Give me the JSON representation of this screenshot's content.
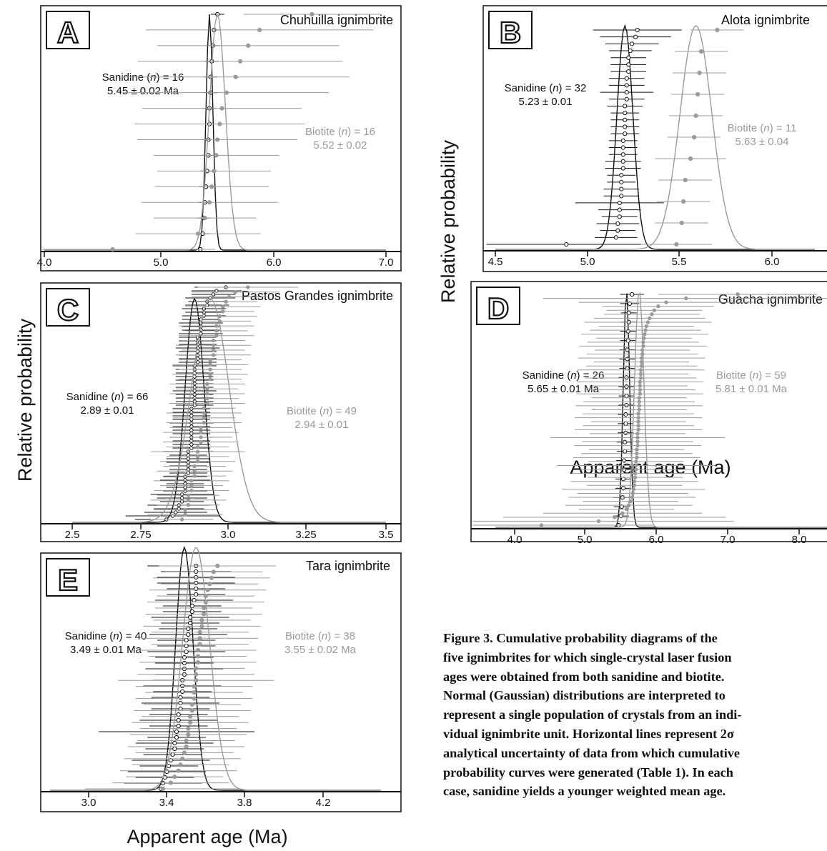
{
  "figure": {
    "ylabel": "Relative probability",
    "xlabel": "Apparent age (Ma)",
    "caption_lines": [
      "Figure 3. Cumulative probability diagrams of the",
      "five ignimbrites for which single-crystal laser fusion",
      "ages were obtained from both sanidine and biotite.",
      "Normal (Gaussian) distributions are interpreted to",
      "represent a single population of crystals from an indi-",
      "vidual ignimbrite unit. Horizontal lines represent 2σ",
      "analytical uncertainty of data from which cumulative",
      "probability curves were generated (Table 1). In each",
      "case, sanidine yields a younger weighted mean age."
    ]
  },
  "colors": {
    "sanidine": "#111111",
    "biotite": "#9a9a9a"
  },
  "chart_data": [
    {
      "type": "scatter",
      "panel": "A",
      "title": "Chuhuilla ignimbrite",
      "xlim": [
        4.0,
        7.0
      ],
      "xticks": [
        "4.0",
        "5.0",
        "6.0",
        "7.0"
      ],
      "series": [
        {
          "name": "Sanidine",
          "n": 16,
          "mean": 5.45,
          "sd": 0.03,
          "label": [
            "Sanidine (",
            "n",
            ") = 16"
          ],
          "age": "5.45 ± 0.02 Ma",
          "ages": [
            5.37,
            5.39,
            5.4,
            5.41,
            5.42,
            5.43,
            5.44,
            5.44,
            5.45,
            5.45,
            5.46,
            5.46,
            5.47,
            5.48,
            5.49,
            5.52
          ],
          "errs": [
            0.07,
            0.06,
            0.06,
            0.06,
            0.06,
            0.06,
            0.06,
            0.06,
            0.06,
            0.06,
            0.06,
            0.06,
            0.06,
            0.06,
            0.06,
            0.06
          ]
        },
        {
          "name": "Biotite",
          "n": 16,
          "mean": 5.52,
          "sd": 0.07,
          "label": [
            "Biotite (",
            "n",
            ") = 16"
          ],
          "age": "5.52 ± 0.02",
          "ages": [
            4.6,
            5.35,
            5.41,
            5.45,
            5.47,
            5.49,
            5.51,
            5.52,
            5.54,
            5.56,
            5.6,
            5.68,
            5.72,
            5.79,
            5.89,
            6.35
          ],
          "errs": [
            0.9,
            0.55,
            0.45,
            0.6,
            0.5,
            0.5,
            0.55,
            0.7,
            0.75,
            0.7,
            0.9,
            1.0,
            0.9,
            0.8,
            1.0,
            0.6
          ]
        }
      ]
    },
    {
      "type": "scatter",
      "panel": "B",
      "title": "Alota ignimbrite",
      "xlim": [
        4.5,
        6.3
      ],
      "xticks": [
        "4.5",
        "5.0",
        "5.5",
        "6.0"
      ],
      "series": [
        {
          "name": "Sanidine",
          "n": 32,
          "mean": 5.23,
          "sd": 0.045,
          "label": [
            "Sanidine (",
            "n",
            ") = 32"
          ],
          "age": "5.23 ± 0.01",
          "ages": [
            4.9,
            5.18,
            5.19,
            5.19,
            5.2,
            5.2,
            5.2,
            5.21,
            5.21,
            5.21,
            5.21,
            5.22,
            5.22,
            5.22,
            5.22,
            5.22,
            5.23,
            5.23,
            5.23,
            5.23,
            5.23,
            5.24,
            5.24,
            5.24,
            5.24,
            5.25,
            5.25,
            5.25,
            5.26,
            5.27,
            5.29,
            5.3
          ],
          "errs": [
            0.45,
            0.12,
            0.1,
            0.12,
            0.1,
            0.12,
            0.25,
            0.1,
            0.1,
            0.08,
            0.08,
            0.1,
            0.1,
            0.08,
            0.08,
            0.08,
            0.08,
            0.08,
            0.08,
            0.08,
            0.1,
            0.1,
            0.15,
            0.1,
            0.1,
            0.1,
            0.1,
            0.1,
            0.12,
            0.15,
            0.2,
            0.25
          ]
        },
        {
          "name": "Biotite",
          "n": 11,
          "mean": 5.63,
          "sd": 0.09,
          "label": [
            "Biotite (",
            "n",
            ") = 11"
          ],
          "age": "5.63 ± 0.04",
          "ages": [
            5.52,
            5.55,
            5.56,
            5.57,
            5.6,
            5.62,
            5.63,
            5.64,
            5.65,
            5.66,
            5.75
          ],
          "errs": [
            0.2,
            0.15,
            0.15,
            0.15,
            0.2,
            0.15,
            0.15,
            0.15,
            0.15,
            0.15,
            0.15
          ]
        }
      ]
    },
    {
      "type": "scatter",
      "panel": "C",
      "title": "Pastos Grandes ignimbrite",
      "xlim": [
        2.5,
        3.5
      ],
      "xticks": [
        "2.5",
        "2.75",
        "3.0",
        "3.25",
        "3.5"
      ],
      "series": [
        {
          "name": "Sanidine",
          "n": 66,
          "mean": 2.89,
          "sd": 0.03,
          "label": [
            "Sanidine (",
            "n",
            ") = 66"
          ],
          "age": "2.89 ± 0.01",
          "ages": [
            2.8,
            2.82,
            2.83,
            2.84,
            2.84,
            2.85,
            2.85,
            2.85,
            2.86,
            2.86,
            2.86,
            2.86,
            2.86,
            2.87,
            2.87,
            2.87,
            2.87,
            2.87,
            2.87,
            2.87,
            2.88,
            2.88,
            2.88,
            2.88,
            2.88,
            2.88,
            2.88,
            2.88,
            2.88,
            2.88,
            2.88,
            2.88,
            2.89,
            2.89,
            2.89,
            2.89,
            2.89,
            2.89,
            2.89,
            2.89,
            2.89,
            2.89,
            2.89,
            2.89,
            2.9,
            2.9,
            2.9,
            2.9,
            2.9,
            2.9,
            2.9,
            2.9,
            2.91,
            2.91,
            2.91,
            2.91,
            2.91,
            2.92,
            2.92,
            2.92,
            2.93,
            2.93,
            2.94,
            2.95,
            2.96,
            2.99
          ],
          "errs": [
            0.1,
            0.15,
            0.1,
            0.08,
            0.1,
            0.07,
            0.08,
            0.1,
            0.07,
            0.06,
            0.06,
            0.08,
            0.07,
            0.06,
            0.06,
            0.06,
            0.07,
            0.07,
            0.06,
            0.08,
            0.06,
            0.06,
            0.06,
            0.07,
            0.06,
            0.06,
            0.06,
            0.07,
            0.06,
            0.06,
            0.06,
            0.06,
            0.06,
            0.06,
            0.06,
            0.06,
            0.07,
            0.06,
            0.06,
            0.06,
            0.06,
            0.06,
            0.06,
            0.07,
            0.06,
            0.06,
            0.06,
            0.06,
            0.07,
            0.06,
            0.06,
            0.06,
            0.07,
            0.06,
            0.06,
            0.07,
            0.06,
            0.07,
            0.06,
            0.07,
            0.07,
            0.06,
            0.08,
            0.07,
            0.08,
            0.1
          ]
        },
        {
          "name": "Biotite",
          "n": 49,
          "mean": 2.94,
          "sd": 0.06,
          "label": [
            "Biotite (",
            "n",
            ") = 49"
          ],
          "age": "2.94 ± 0.01",
          "ages": [
            2.85,
            2.86,
            2.86,
            2.87,
            2.87,
            2.87,
            2.88,
            2.88,
            2.88,
            2.89,
            2.89,
            2.89,
            2.9,
            2.9,
            2.9,
            2.9,
            2.91,
            2.91,
            2.91,
            2.91,
            2.92,
            2.92,
            2.92,
            2.92,
            2.93,
            2.93,
            2.93,
            2.93,
            2.93,
            2.94,
            2.94,
            2.94,
            2.94,
            2.94,
            2.95,
            2.95,
            2.95,
            2.95,
            2.96,
            2.96,
            2.96,
            2.97,
            2.97,
            2.98,
            2.98,
            2.99,
            3.0,
            3.02,
            3.06
          ],
          "errs": [
            0.1,
            0.12,
            0.1,
            0.1,
            0.12,
            0.1,
            0.12,
            0.1,
            0.12,
            0.1,
            0.12,
            0.1,
            0.12,
            0.1,
            0.15,
            0.1,
            0.12,
            0.1,
            0.12,
            0.1,
            0.12,
            0.1,
            0.12,
            0.1,
            0.12,
            0.1,
            0.12,
            0.1,
            0.12,
            0.1,
            0.12,
            0.1,
            0.12,
            0.1,
            0.12,
            0.1,
            0.12,
            0.1,
            0.12,
            0.1,
            0.12,
            0.1,
            0.12,
            0.1,
            0.12,
            0.1,
            0.12,
            0.14,
            0.16
          ]
        }
      ]
    },
    {
      "type": "scatter",
      "panel": "D",
      "title": "Guacha ignimbrite",
      "xlim": [
        4.0,
        8.2
      ],
      "xticks": [
        "4.0",
        "5.0",
        "6.0",
        "7.0",
        "8.0"
      ],
      "series": [
        {
          "name": "Sanidine",
          "n": 26,
          "mean": 5.65,
          "sd": 0.04,
          "label": [
            "Sanidine (",
            "n",
            ") = 26"
          ],
          "age": "5.65 ± 0.01 Ma",
          "ages": [
            5.55,
            5.58,
            5.59,
            5.6,
            5.61,
            5.61,
            5.62,
            5.62,
            5.63,
            5.63,
            5.64,
            5.64,
            5.64,
            5.65,
            5.65,
            5.65,
            5.65,
            5.66,
            5.66,
            5.66,
            5.67,
            5.67,
            5.68,
            5.68,
            5.69,
            5.72
          ],
          "errs": [
            0.12,
            0.1,
            0.1,
            0.12,
            0.1,
            0.1,
            0.12,
            0.1,
            0.1,
            0.1,
            0.1,
            0.1,
            0.1,
            0.1,
            0.1,
            0.1,
            0.1,
            0.1,
            0.1,
            0.1,
            0.1,
            0.1,
            0.1,
            0.1,
            0.12,
            0.15
          ]
        },
        {
          "name": "Biotite",
          "n": 59,
          "mean": 5.81,
          "sd": 0.06,
          "label": [
            "Biotite (",
            "n",
            ") = 59"
          ],
          "age": "5.81 ± 0.01 Ma",
          "ages": [
            4.58,
            5.3,
            5.5,
            5.6,
            5.65,
            5.68,
            5.7,
            5.72,
            5.73,
            5.74,
            5.75,
            5.75,
            5.76,
            5.76,
            5.77,
            5.77,
            5.77,
            5.78,
            5.78,
            5.78,
            5.79,
            5.79,
            5.79,
            5.79,
            5.8,
            5.8,
            5.8,
            5.8,
            5.8,
            5.81,
            5.81,
            5.81,
            5.81,
            5.82,
            5.82,
            5.82,
            5.82,
            5.83,
            5.83,
            5.83,
            5.84,
            5.84,
            5.84,
            5.85,
            5.85,
            5.86,
            5.86,
            5.87,
            5.88,
            5.89,
            5.9,
            5.92,
            5.94,
            5.97,
            6.0,
            6.05,
            6.15,
            6.4,
            7.05
          ],
          "errs": [
            1.4,
            1.7,
            1.4,
            1.0,
            0.6,
            0.8,
            0.6,
            0.8,
            0.7,
            0.9,
            0.6,
            0.8,
            0.6,
            0.8,
            0.7,
            1.0,
            0.6,
            0.8,
            0.7,
            0.6,
            0.8,
            0.7,
            1.1,
            0.6,
            0.8,
            0.7,
            0.6,
            0.8,
            0.7,
            0.6,
            0.8,
            0.7,
            0.6,
            0.8,
            0.7,
            0.6,
            0.8,
            0.7,
            0.6,
            0.8,
            0.7,
            0.6,
            0.8,
            0.7,
            0.6,
            0.8,
            0.7,
            0.6,
            0.8,
            0.7,
            0.6,
            0.8,
            0.7,
            0.6,
            0.6,
            0.7,
            1.1,
            1.8,
            1.0
          ]
        }
      ]
    },
    {
      "type": "scatter",
      "panel": "E",
      "title": "Tara ignimbrite",
      "xlim": [
        2.8,
        4.5
      ],
      "xticks": [
        "3.0",
        "3.4",
        "3.8",
        "4.2"
      ],
      "series": [
        {
          "name": "Sanidine",
          "n": 40,
          "mean": 3.49,
          "sd": 0.045,
          "label": [
            "Sanidine (",
            "n",
            ") = 40"
          ],
          "age": "3.49 ± 0.01 Ma",
          "ages": [
            3.37,
            3.38,
            3.39,
            3.4,
            3.41,
            3.42,
            3.43,
            3.44,
            3.44,
            3.45,
            3.45,
            3.46,
            3.46,
            3.46,
            3.47,
            3.47,
            3.47,
            3.48,
            3.48,
            3.48,
            3.49,
            3.49,
            3.49,
            3.49,
            3.5,
            3.5,
            3.5,
            3.51,
            3.51,
            3.52,
            3.52,
            3.53,
            3.53,
            3.54,
            3.55,
            3.55,
            3.55,
            3.55,
            3.55,
            3.55
          ],
          "errs": [
            0.3,
            0.2,
            0.15,
            0.2,
            0.15,
            0.2,
            0.15,
            0.15,
            0.2,
            0.15,
            0.4,
            0.15,
            0.2,
            0.15,
            0.15,
            0.2,
            0.15,
            0.15,
            0.2,
            0.15,
            0.15,
            0.2,
            0.15,
            0.15,
            0.2,
            0.15,
            0.15,
            0.2,
            0.15,
            0.15,
            0.2,
            0.15,
            0.15,
            0.2,
            0.15,
            0.15,
            0.2,
            0.2,
            0.18,
            0.25
          ]
        },
        {
          "name": "Biotite",
          "n": 38,
          "mean": 3.55,
          "sd": 0.07,
          "label": [
            "Biotite (",
            "n",
            ") = 38"
          ],
          "age": "3.55 ± 0.02 Ma",
          "ages": [
            3.38,
            3.42,
            3.44,
            3.46,
            3.47,
            3.48,
            3.49,
            3.5,
            3.5,
            3.51,
            3.51,
            3.52,
            3.52,
            3.53,
            3.53,
            3.54,
            3.54,
            3.54,
            3.55,
            3.55,
            3.55,
            3.56,
            3.56,
            3.56,
            3.57,
            3.57,
            3.57,
            3.58,
            3.58,
            3.59,
            3.59,
            3.6,
            3.6,
            3.61,
            3.62,
            3.63,
            3.64,
            3.66
          ],
          "errs": [
            0.4,
            0.3,
            0.25,
            0.3,
            0.25,
            0.3,
            0.25,
            0.3,
            0.25,
            0.3,
            0.25,
            0.3,
            0.25,
            0.3,
            0.25,
            0.3,
            0.25,
            0.3,
            0.4,
            0.3,
            0.25,
            0.3,
            0.25,
            0.3,
            0.25,
            0.3,
            0.25,
            0.3,
            0.25,
            0.3,
            0.25,
            0.3,
            0.25,
            0.3,
            0.25,
            0.3,
            0.25,
            0.3
          ]
        }
      ]
    }
  ]
}
